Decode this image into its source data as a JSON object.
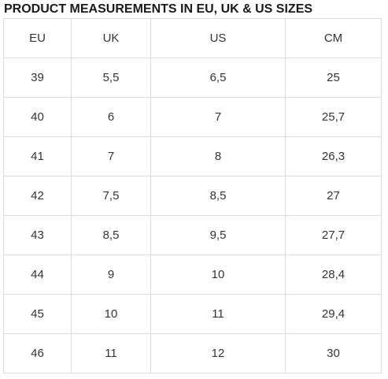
{
  "title": "PRODUCT MEASUREMENTS IN EU, UK & US SIZES",
  "table": {
    "headers": [
      "EU",
      "UK",
      "US",
      "CM"
    ],
    "rows": [
      [
        "39",
        "5,5",
        "6,5",
        "25"
      ],
      [
        "40",
        "6",
        "7",
        "25,7"
      ],
      [
        "41",
        "7",
        "8",
        "26,3"
      ],
      [
        "42",
        "7,5",
        "8,5",
        "27"
      ],
      [
        "43",
        "8,5",
        "9,5",
        "27,7"
      ],
      [
        "44",
        "9",
        "10",
        "28,4"
      ],
      [
        "45",
        "10",
        "11",
        "29,4"
      ],
      [
        "46",
        "11",
        "12",
        "30"
      ]
    ]
  }
}
